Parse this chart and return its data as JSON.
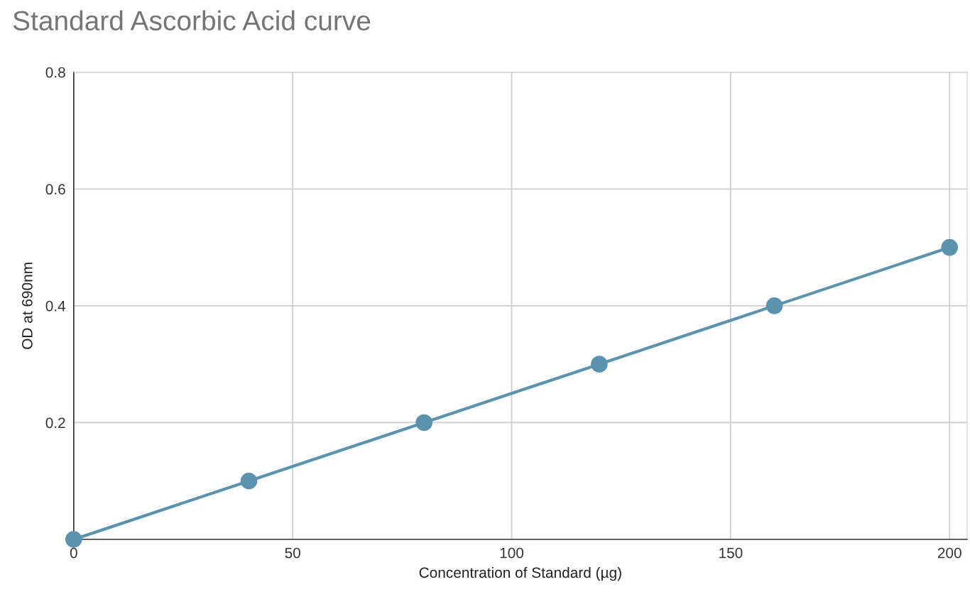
{
  "chart_data": {
    "type": "line",
    "title": "Standard Ascorbic Acid curve",
    "xlabel": "Concentration of Standard (µg)",
    "ylabel": "OD at 690nm",
    "x": [
      0,
      40,
      80,
      120,
      160,
      200
    ],
    "series": [
      {
        "color": "#5b93ae",
        "values": [
          0,
          0.1,
          0.2,
          0.3,
          0.4,
          0.5
        ]
      }
    ],
    "xlim": [
      0,
      204
    ],
    "xticks": [
      0,
      50,
      100,
      150,
      200
    ],
    "ylim": [
      0,
      0.8
    ],
    "yticks": [
      {
        "value": 0,
        "label": null
      },
      0.2,
      0.4,
      0.6,
      0.8
    ],
    "grid": true,
    "marker": "circle",
    "line_style": "solid"
  }
}
